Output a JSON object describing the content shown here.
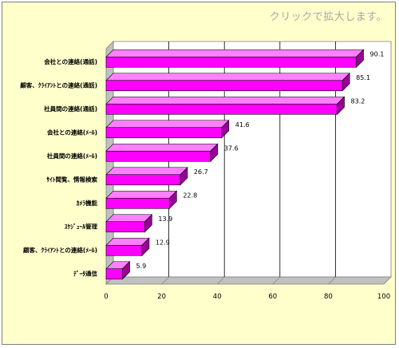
{
  "hint_text": "クリックで拡大します。",
  "colors": {
    "background": "#ffffcc",
    "bar": "#ff00ff",
    "bar_top": "#ff80ff",
    "bar_side": "#990099"
  },
  "chart_data": {
    "type": "bar",
    "orientation": "horizontal",
    "categories": [
      "会社との連絡(通話)",
      "顧客、ｸﾗｲｱﾝﾄとの連絡(通話)",
      "社員間の連絡(通話)",
      "会社との連絡(ﾒｰﾙ)",
      "社員間の連絡(ﾒｰﾙ)",
      "ｻｲﾄ閲覧、情報検索",
      "ｶﾒﾗ機能",
      "ｽｹｼﾞｭｰﾙ管理",
      "顧客、ｸﾗｲｱﾝﾄとの連絡(ﾒｰﾙ)",
      "ﾃﾞｰﾀ通信"
    ],
    "values": [
      90.1,
      85.1,
      83.2,
      41.6,
      37.6,
      26.7,
      22.8,
      13.9,
      12.9,
      5.9
    ],
    "xlim": [
      0,
      100
    ],
    "xticks": [
      0,
      20,
      40,
      60,
      80,
      100
    ],
    "grid": true,
    "legend": "none"
  }
}
